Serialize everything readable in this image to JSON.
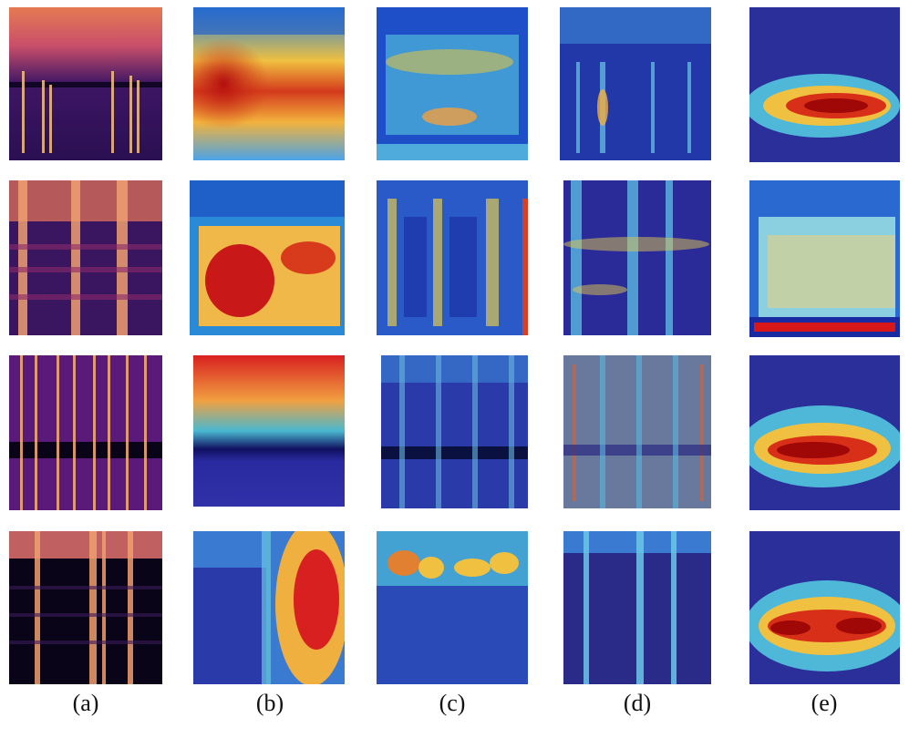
{
  "captions": [
    "(a)",
    "(b)",
    "(c)",
    "(d)",
    "(e)"
  ],
  "columns": [
    {
      "id": "a",
      "kind": "spectrogram",
      "palette": "magma"
    },
    {
      "id": "b",
      "kind": "heatmap-overlay",
      "palette": "jet"
    },
    {
      "id": "c",
      "kind": "heatmap-overlay",
      "palette": "jet"
    },
    {
      "id": "d",
      "kind": "heatmap-overlay",
      "palette": "jet"
    },
    {
      "id": "e",
      "kind": "heatmap-overlay",
      "palette": "jet"
    }
  ],
  "rows": 4
}
